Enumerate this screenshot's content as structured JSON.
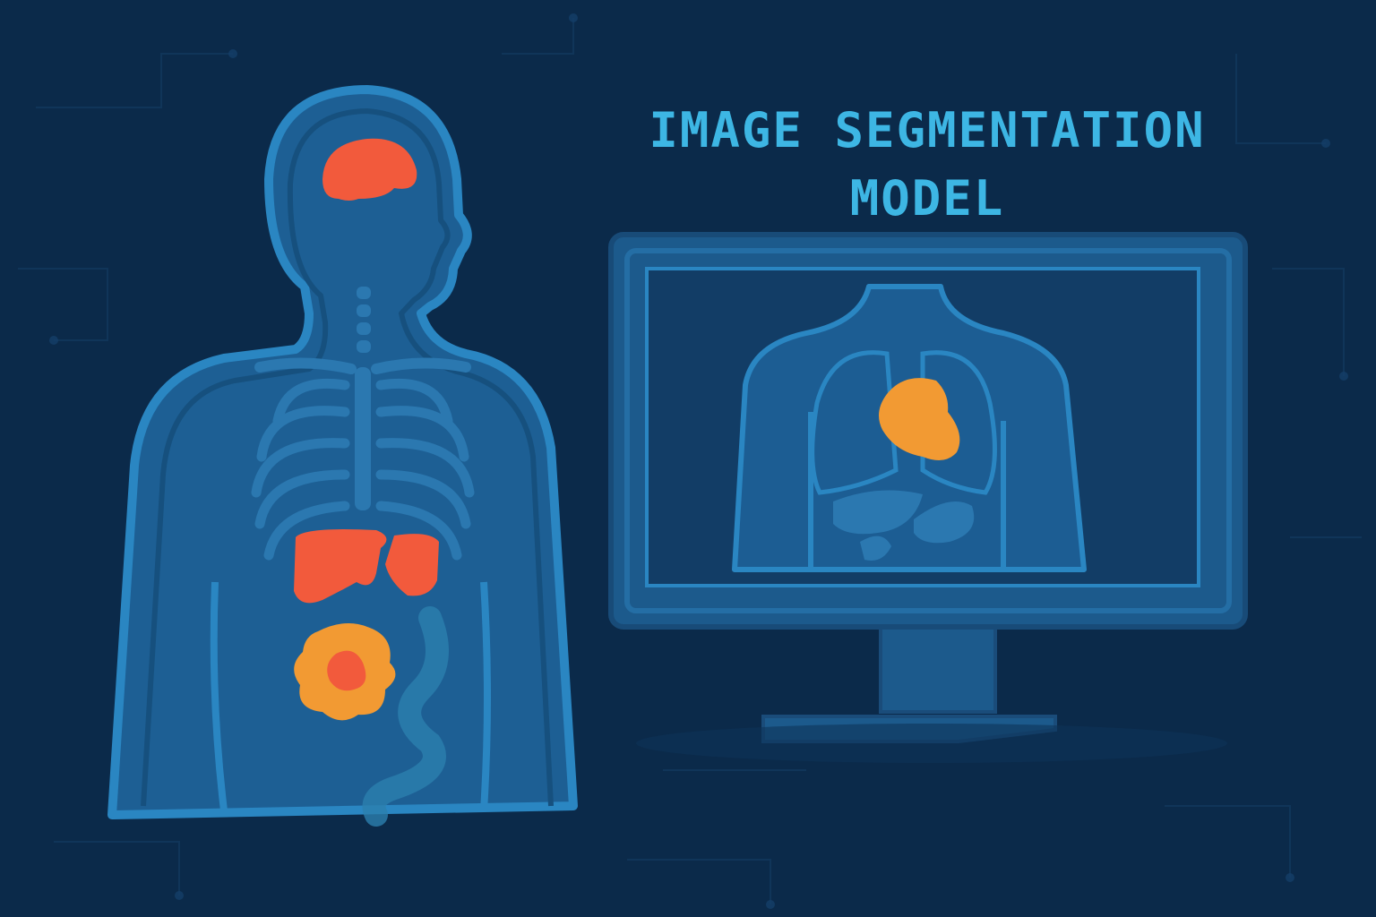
{
  "title": {
    "line1": "IMAGE SEGMENTATION",
    "line2": "MODEL"
  },
  "colors": {
    "background": "#0b2a4a",
    "title": "#3db6e4",
    "body_fill": "#1d5f94",
    "body_outline": "#2a86c2",
    "bone": "#2b78b0",
    "segment_red": "#f25a3c",
    "segment_orange": "#f29a33",
    "monitor_frame": "#1c5a8c",
    "monitor_screen": "#123d66"
  },
  "icons": {
    "human_figure": "human-silhouette-icon",
    "brain": "brain-icon",
    "liver": "liver-icon",
    "tumor": "tumor-icon",
    "monitor": "monitor-icon",
    "heart": "heart-icon"
  }
}
